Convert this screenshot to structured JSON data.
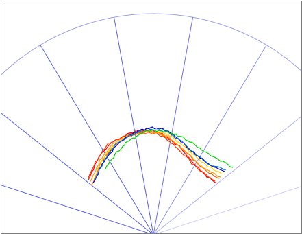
{
  "chart_data": {
    "type": "line",
    "title": "",
    "xlabel": "",
    "ylabel": "",
    "grid": "polar-sector",
    "radial_lines": 8,
    "legend": "none",
    "series": [
      {
        "color": "#ff0000",
        "points": [
          [
            -94,
            80
          ],
          [
            -80,
            112
          ],
          [
            -64,
            133
          ],
          [
            -45,
            143
          ],
          [
            -25,
            151
          ],
          [
            -10,
            152
          ],
          [
            5,
            151
          ],
          [
            20,
            142
          ],
          [
            38,
            128
          ],
          [
            56,
            107
          ],
          [
            72,
            90
          ],
          [
            92,
            75
          ]
        ]
      },
      {
        "color": "#ff3300",
        "points": [
          [
            -96,
            82
          ],
          [
            -82,
            110
          ],
          [
            -66,
            132
          ],
          [
            -48,
            141
          ],
          [
            -28,
            148
          ],
          [
            -12,
            150
          ],
          [
            3,
            149
          ],
          [
            18,
            140
          ],
          [
            36,
            126
          ],
          [
            54,
            106
          ],
          [
            70,
            92
          ],
          [
            90,
            78
          ]
        ]
      },
      {
        "color": "#ff6600",
        "points": [
          [
            -90,
            72
          ],
          [
            -76,
            105
          ],
          [
            -60,
            128
          ],
          [
            -42,
            140
          ],
          [
            -24,
            146
          ],
          [
            -8,
            148
          ],
          [
            8,
            148
          ],
          [
            22,
            141
          ],
          [
            40,
            127
          ],
          [
            58,
            110
          ],
          [
            74,
            95
          ],
          [
            96,
            82
          ]
        ]
      },
      {
        "color": "#ff9900",
        "points": [
          [
            -92,
            78
          ],
          [
            -78,
            108
          ],
          [
            -62,
            130
          ],
          [
            -44,
            142
          ],
          [
            -26,
            147
          ],
          [
            -10,
            150
          ],
          [
            6,
            149
          ],
          [
            20,
            143
          ],
          [
            38,
            129
          ],
          [
            56,
            113
          ],
          [
            72,
            98
          ],
          [
            98,
            84
          ]
        ]
      },
      {
        "color": "#ffcc00",
        "points": [
          [
            -84,
            92
          ],
          [
            -70,
            116
          ],
          [
            -54,
            134
          ],
          [
            -36,
            144
          ],
          [
            -20,
            149
          ],
          [
            -5,
            152
          ],
          [
            10,
            150
          ],
          [
            24,
            145
          ],
          [
            40,
            132
          ],
          [
            58,
            117
          ],
          [
            76,
            102
          ],
          [
            100,
            88
          ]
        ]
      },
      {
        "color": "#0000cc",
        "points": [
          [
            -88,
            75
          ],
          [
            -74,
            104
          ],
          [
            -58,
            126
          ],
          [
            -40,
            142
          ],
          [
            -22,
            151
          ],
          [
            -4,
            156
          ],
          [
            12,
            155
          ],
          [
            28,
            147
          ],
          [
            44,
            133
          ],
          [
            62,
            117
          ],
          [
            80,
            103
          ],
          [
            104,
            92
          ]
        ]
      },
      {
        "color": "#0066cc",
        "points": [
          [
            -86,
            80
          ],
          [
            -72,
            108
          ],
          [
            -56,
            130
          ],
          [
            -38,
            143
          ],
          [
            -20,
            150
          ],
          [
            -2,
            153
          ],
          [
            14,
            152
          ],
          [
            30,
            144
          ],
          [
            46,
            131
          ],
          [
            64,
            115
          ],
          [
            82,
            102
          ],
          [
            106,
            95
          ]
        ]
      },
      {
        "color": "#00cc00",
        "points": [
          [
            -70,
            96
          ],
          [
            -56,
            117
          ],
          [
            -40,
            133
          ],
          [
            -24,
            144
          ],
          [
            -8,
            151
          ],
          [
            8,
            152
          ],
          [
            22,
            149
          ],
          [
            38,
            144
          ],
          [
            56,
            134
          ],
          [
            74,
            122
          ],
          [
            94,
            110
          ],
          [
            116,
            98
          ]
        ]
      }
    ]
  }
}
